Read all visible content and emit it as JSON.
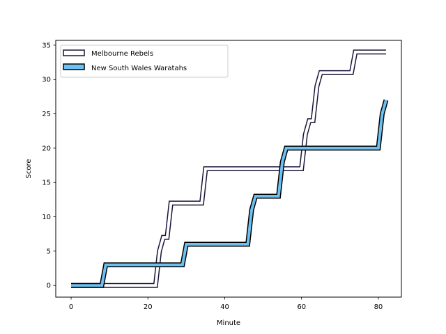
{
  "chart_data": {
    "type": "line",
    "xlabel": "Minute",
    "ylabel": "Score",
    "xlim": [
      -4,
      86
    ],
    "ylim": [
      -1.7,
      35.7
    ],
    "xticks": [
      0,
      20,
      40,
      60,
      80
    ],
    "yticks": [
      0,
      5,
      10,
      15,
      20,
      25,
      30,
      35
    ],
    "grid": false,
    "legend_position": "top-left",
    "series": [
      {
        "name": "Melbourne Rebels",
        "style": "outlined-line",
        "fill_color": "#ffffff",
        "edge_color": "#1a1537",
        "x": [
          0,
          22,
          23,
          24,
          25,
          26,
          34,
          35,
          60,
          61,
          62,
          63,
          64,
          65,
          66,
          73,
          74,
          82
        ],
        "y": [
          0,
          0,
          5,
          7,
          7,
          12,
          12,
          17,
          17,
          22,
          24,
          24,
          29,
          31,
          31,
          31,
          34,
          34
        ]
      },
      {
        "name": "New South Wales Waratahs",
        "style": "outlined-line",
        "fill_color": "#6ec0f0",
        "edge_color": "#000000",
        "x": [
          0,
          8,
          9,
          29,
          30,
          46,
          47,
          48,
          54,
          55,
          56,
          80,
          81,
          82
        ],
        "y": [
          0,
          0,
          3,
          3,
          6,
          6,
          11,
          13,
          13,
          18,
          20,
          20,
          25,
          27
        ]
      }
    ]
  }
}
